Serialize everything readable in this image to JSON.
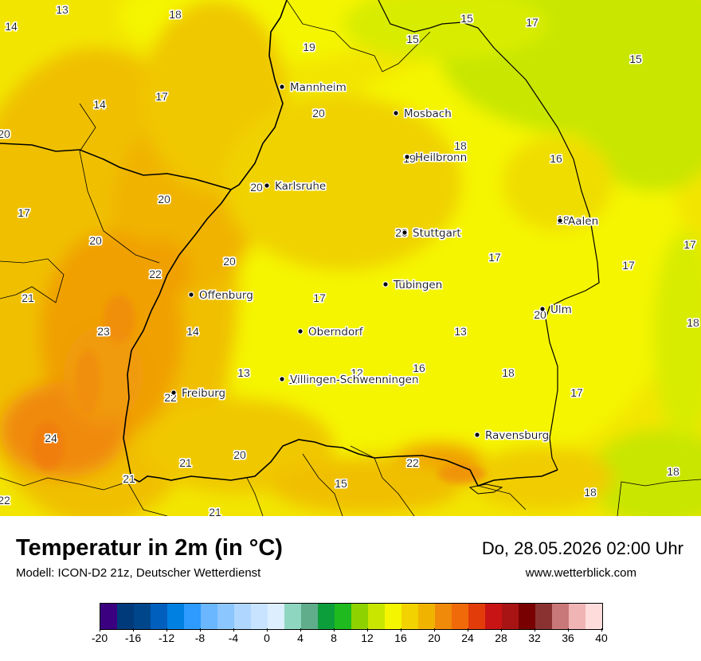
{
  "map": {
    "cities": [
      {
        "name": "Mannheim"
      },
      {
        "name": "Mosbach"
      },
      {
        "name": "Heilbronn"
      },
      {
        "name": "Karlsruhe"
      },
      {
        "name": "Stuttgart"
      },
      {
        "name": "Aalen"
      },
      {
        "name": "Tübingen"
      },
      {
        "name": "Offenburg"
      },
      {
        "name": "Ulm"
      },
      {
        "name": "Oberndorf"
      },
      {
        "name": "Villingen-Schwenningen"
      },
      {
        "name": "Freiburg"
      },
      {
        "name": "Ravensburg"
      }
    ],
    "temperature_labels": [
      "13",
      "18",
      "14",
      "19",
      "15",
      "17",
      "15",
      "15",
      "17",
      "14",
      "20",
      "20",
      "18",
      "16",
      "19",
      "20",
      "20",
      "17",
      "17",
      "20",
      "20",
      "17",
      "17",
      "22",
      "20",
      "17",
      "21",
      "23",
      "14",
      "18",
      "13",
      "16",
      "12",
      "18",
      "17",
      "21",
      "24",
      "22",
      "18",
      "21",
      "20",
      "21",
      "22",
      "22",
      "15",
      "20",
      "18",
      "18",
      "18",
      "13"
    ]
  },
  "legend": {
    "title": "Temperatur in 2m (in °C)",
    "model": "Modell: ICON-D2 21z, Deutscher Wetterdienst",
    "datetime": "Do, 28.05.2026 02:00 Uhr",
    "website": "www.wetterblick.com",
    "scale_colors": [
      "#3b0080",
      "#003a7a",
      "#00468a",
      "#005fbd",
      "#0080e0",
      "#2d9bff",
      "#6ab6ff",
      "#8cc6ff",
      "#aed6ff",
      "#c8e3ff",
      "#ddeeff",
      "#8ed6c0",
      "#5fad8a",
      "#0d9e3c",
      "#1eba1e",
      "#8ed200",
      "#c8e600",
      "#f5f500",
      "#f2d200",
      "#f0b400",
      "#f08a0a",
      "#f06a0a",
      "#e23c0a",
      "#c81414",
      "#a81414",
      "#780000",
      "#8a3232",
      "#c87878",
      "#f0b4b4",
      "#ffdcdc"
    ],
    "scale_labels": [
      "-20",
      "-16",
      "-12",
      "-8",
      "-4",
      "0",
      "4",
      "8",
      "12",
      "16",
      "20",
      "24",
      "28",
      "32",
      "36",
      "40"
    ]
  }
}
